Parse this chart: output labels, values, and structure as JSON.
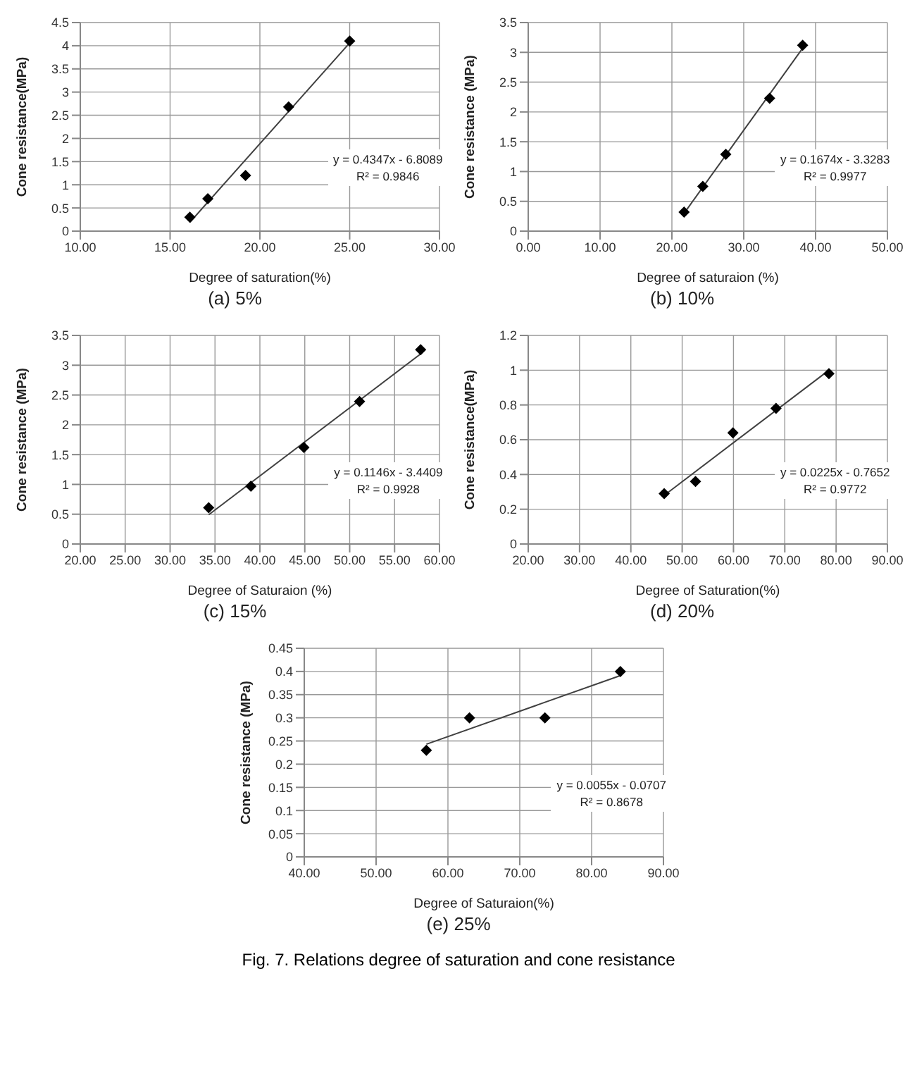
{
  "chart_data": [
    {
      "type": "scatter",
      "title": "(a)  5%",
      "xlabel": "Degree of saturation(%)",
      "ylabel": "Cone resistance(MPa)",
      "grid": true,
      "xlim": [
        10,
        30
      ],
      "xticks": [
        {
          "value": 10,
          "label": "10.00"
        },
        {
          "value": 15,
          "label": "15.00"
        },
        {
          "value": 20,
          "label": "20.00"
        },
        {
          "value": 25,
          "label": "25.00"
        },
        {
          "value": 30,
          "label": "30.00"
        }
      ],
      "ylim": [
        0,
        4.5
      ],
      "yticks": [
        0,
        0.5,
        1,
        1.5,
        2,
        2.5,
        3,
        3.5,
        4,
        4.5
      ],
      "annotations": [
        "y = 0.4347x - 6.8089",
        "R² = 0.9846"
      ],
      "series": [
        {
          "type": "scatter",
          "color": "#000000",
          "marker": "diamond",
          "x": [
            16.1,
            17.1,
            19.2,
            21.6,
            25.0
          ],
          "values": [
            0.3,
            0.7,
            1.2,
            2.68,
            4.1
          ]
        },
        {
          "type": "line",
          "color": "#404040",
          "marker": "none",
          "x": [
            16.1,
            25.0
          ],
          "values": [
            0.19,
            4.06
          ]
        }
      ]
    },
    {
      "type": "scatter",
      "title": "(b)  10%",
      "xlabel": "Degree of saturaion (%)",
      "ylabel": "Cone resistance (MPa)",
      "grid": true,
      "xlim": [
        0,
        50
      ],
      "xticks": [
        {
          "value": 0,
          "label": "0.00"
        },
        {
          "value": 10,
          "label": "10.00"
        },
        {
          "value": 20,
          "label": "20.00"
        },
        {
          "value": 30,
          "label": "30.00"
        },
        {
          "value": 40,
          "label": "40.00"
        },
        {
          "value": 50,
          "label": "50.00"
        }
      ],
      "ylim": [
        0,
        3.5
      ],
      "yticks": [
        0,
        0.5,
        1,
        1.5,
        2,
        2.5,
        3,
        3.5
      ],
      "annotations": [
        "y = 0.1674x - 3.3283",
        "R² = 0.9977"
      ],
      "series": [
        {
          "type": "scatter",
          "color": "#000000",
          "marker": "diamond",
          "x": [
            21.7,
            24.3,
            27.5,
            33.6,
            38.2
          ],
          "values": [
            0.32,
            0.75,
            1.29,
            2.23,
            3.12
          ]
        },
        {
          "type": "line",
          "color": "#404040",
          "marker": "none",
          "x": [
            21.7,
            38.2
          ],
          "values": [
            0.3,
            3.07
          ]
        }
      ]
    },
    {
      "type": "scatter",
      "title": "(c)  15%",
      "xlabel": "Degree of Saturaion  (%)",
      "ylabel": "Cone resistance (MPa)",
      "grid": true,
      "xlim": [
        20,
        60
      ],
      "xticks": [
        {
          "value": 20,
          "label": "20.00"
        },
        {
          "value": 25,
          "label": "25.00"
        },
        {
          "value": 30,
          "label": "30.00"
        },
        {
          "value": 35,
          "label": "35.00"
        },
        {
          "value": 40,
          "label": "40.00"
        },
        {
          "value": 45,
          "label": "45.00"
        },
        {
          "value": 50,
          "label": "50.00"
        },
        {
          "value": 55,
          "label": "55.00"
        },
        {
          "value": 60,
          "label": "60.00"
        }
      ],
      "ylim": [
        0,
        3.5
      ],
      "yticks": [
        0,
        0.5,
        1,
        1.5,
        2,
        2.5,
        3,
        3.5
      ],
      "annotations": [
        "y = 0.1146x - 3.4409",
        "R² = 0.9928"
      ],
      "series": [
        {
          "type": "scatter",
          "color": "#000000",
          "marker": "diamond",
          "x": [
            34.3,
            39.0,
            44.9,
            51.1,
            57.9
          ],
          "values": [
            0.61,
            0.97,
            1.62,
            2.39,
            3.26
          ]
        },
        {
          "type": "line",
          "color": "#404040",
          "marker": "none",
          "x": [
            34.3,
            57.9
          ],
          "values": [
            0.49,
            3.19
          ]
        }
      ]
    },
    {
      "type": "scatter",
      "title": "(d)  20%",
      "xlabel": "Degree of Saturation(%)",
      "ylabel": "Cone resistance(MPa)",
      "grid": true,
      "xlim": [
        20,
        90
      ],
      "xticks": [
        {
          "value": 20,
          "label": "20.00"
        },
        {
          "value": 30,
          "label": "30.00"
        },
        {
          "value": 40,
          "label": "40.00"
        },
        {
          "value": 50,
          "label": "50.00"
        },
        {
          "value": 60,
          "label": "60.00"
        },
        {
          "value": 70,
          "label": "70.00"
        },
        {
          "value": 80,
          "label": "80.00"
        },
        {
          "value": 90,
          "label": "90.00"
        }
      ],
      "ylim": [
        0,
        1.2
      ],
      "yticks": [
        0,
        0.2,
        0.4,
        0.6,
        0.8,
        1,
        1.2
      ],
      "annotations": [
        "y = 0.0225x - 0.7652",
        "R² = 0.9772"
      ],
      "series": [
        {
          "type": "scatter",
          "color": "#000000",
          "marker": "diamond",
          "x": [
            46.5,
            52.6,
            59.9,
            68.3,
            78.6
          ],
          "values": [
            0.29,
            0.36,
            0.64,
            0.78,
            0.98
          ]
        },
        {
          "type": "line",
          "color": "#404040",
          "marker": "none",
          "x": [
            46.5,
            78.6
          ],
          "values": [
            0.28,
            1.0
          ]
        }
      ]
    },
    {
      "type": "scatter",
      "title": "(e)  25%",
      "xlabel": "Degree of Saturaion(%)",
      "ylabel": "Cone resistance (MPa)",
      "grid": true,
      "xlim": [
        40,
        90
      ],
      "xticks": [
        {
          "value": 40,
          "label": "40.00"
        },
        {
          "value": 50,
          "label": "50.00"
        },
        {
          "value": 60,
          "label": "60.00"
        },
        {
          "value": 70,
          "label": "70.00"
        },
        {
          "value": 80,
          "label": "80.00"
        },
        {
          "value": 90,
          "label": "90.00"
        }
      ],
      "ylim": [
        0,
        0.45
      ],
      "yticks": [
        0,
        0.05,
        0.1,
        0.15,
        0.2,
        0.25,
        0.3,
        0.35,
        0.4,
        0.45
      ],
      "annotations": [
        "y = 0.0055x - 0.0707",
        "R² = 0.8678",
        "Fig. 7. Relations degree of saturation and cone resistance"
      ],
      "series": [
        {
          "type": "scatter",
          "color": "#000000",
          "marker": "diamond",
          "x": [
            57.0,
            63.0,
            73.5,
            84.0
          ],
          "values": [
            0.23,
            0.3,
            0.3,
            0.4
          ]
        },
        {
          "type": "line",
          "color": "#404040",
          "marker": "none",
          "x": [
            57.0,
            84.0
          ],
          "values": [
            0.243,
            0.391
          ]
        }
      ]
    }
  ]
}
